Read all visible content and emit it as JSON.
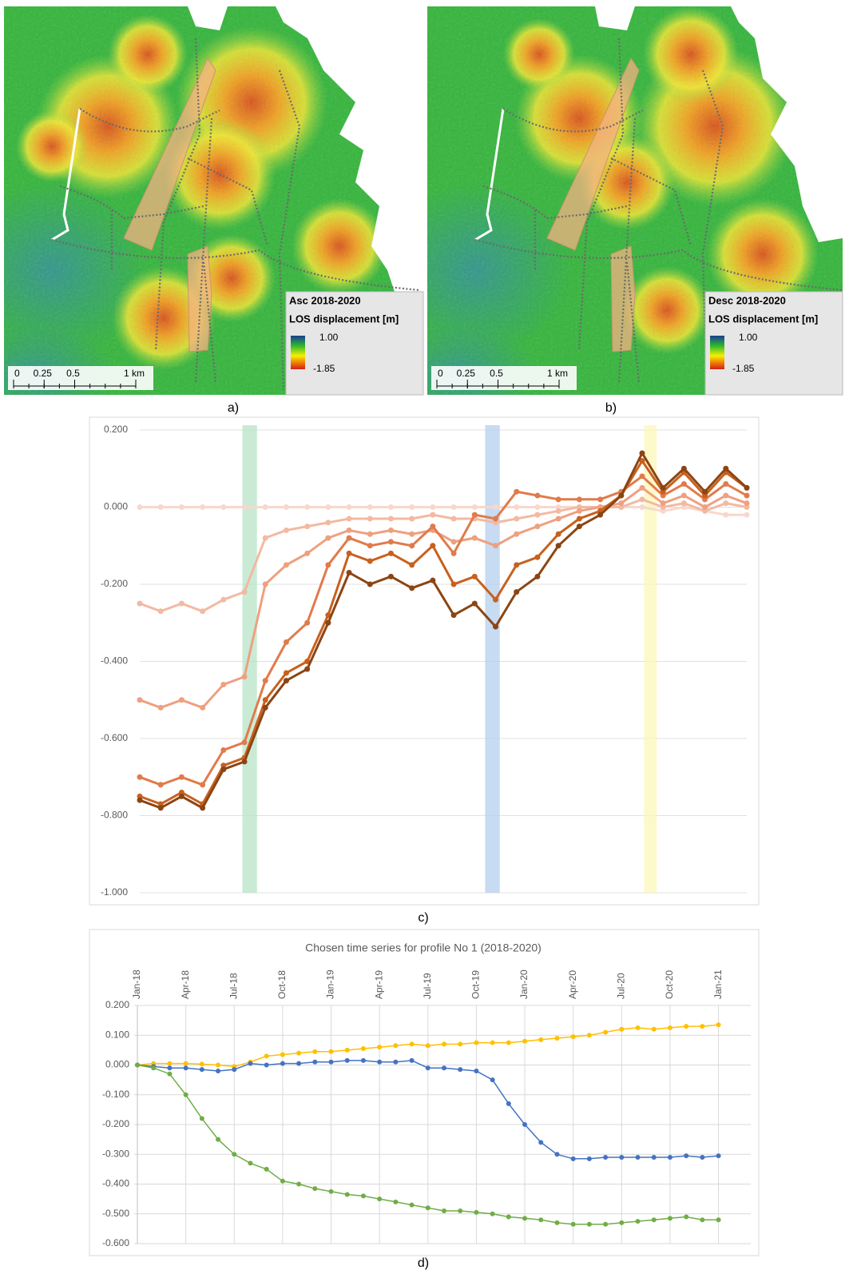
{
  "maps": [
    {
      "caption": "a)",
      "legend_title": "Asc 2018-2020",
      "legend_label": "LOS displacement [m]",
      "legend_max": "1.00",
      "legend_min": "-1.85",
      "scale_ticks": [
        0,
        0.25,
        0.5,
        {
          "value": 1,
          "label": "1 km"
        }
      ]
    },
    {
      "caption": "b)",
      "legend_title": "Desc 2018-2020",
      "legend_label": "LOS displacement [m]",
      "legend_max": "1.00",
      "legend_min": "-1.85",
      "scale_ticks": [
        0,
        0.25,
        0.5,
        {
          "value": 1,
          "label": "1 km"
        }
      ]
    }
  ],
  "chart_data": [
    {
      "type": "line",
      "caption": "c)",
      "ylim": [
        -1,
        0.2
      ],
      "yticks": [
        {
          "value": 0.2,
          "label": "0.200"
        },
        {
          "value": 0,
          "label": "0.000"
        },
        {
          "value": -0.2,
          "label": "-0.200"
        },
        {
          "value": -0.4,
          "label": "-0.400"
        },
        {
          "value": -0.6,
          "label": "-0.600"
        },
        {
          "value": -0.8,
          "label": "-0.800"
        },
        {
          "value": -1,
          "label": "-1.000"
        }
      ],
      "grid": true,
      "highlights": [
        {
          "from": 4.9,
          "to": 5.6,
          "color": "#b7e4c7"
        },
        {
          "from": 16.5,
          "to": 17.2,
          "color": "#b4cfee"
        },
        {
          "from": 24.1,
          "to": 24.7,
          "color": "#fbf7b8"
        }
      ],
      "series": [
        {
          "color": "#f8d8cc",
          "values": [
            0,
            0,
            0,
            0,
            0,
            0,
            0,
            0,
            0,
            0,
            0,
            0,
            0,
            0,
            0,
            0,
            0,
            0,
            0,
            0,
            0,
            0,
            0,
            0,
            0,
            -0.01,
            0,
            -0.01,
            -0.02,
            -0.02
          ]
        },
        {
          "color": "#f3b9a2",
          "values": [
            -0.25,
            -0.27,
            -0.25,
            -0.27,
            -0.24,
            -0.22,
            -0.08,
            -0.06,
            -0.05,
            -0.04,
            -0.03,
            -0.03,
            -0.03,
            -0.03,
            -0.02,
            -0.03,
            -0.03,
            -0.04,
            -0.03,
            -0.02,
            -0.01,
            0,
            0,
            0,
            0.02,
            0,
            0.01,
            -0.01,
            0.01,
            0
          ]
        },
        {
          "color": "#eea07f",
          "values": [
            -0.5,
            -0.52,
            -0.5,
            -0.52,
            -0.46,
            -0.44,
            -0.2,
            -0.15,
            -0.12,
            -0.08,
            -0.06,
            -0.07,
            -0.06,
            -0.07,
            -0.06,
            -0.09,
            -0.08,
            -0.1,
            -0.07,
            -0.05,
            -0.03,
            -0.01,
            0,
            0.01,
            0.05,
            0.01,
            0.03,
            0,
            0.03,
            0.01
          ]
        },
        {
          "color": "#e07b4b",
          "values": [
            -0.7,
            -0.72,
            -0.7,
            -0.72,
            -0.63,
            -0.61,
            -0.45,
            -0.35,
            -0.3,
            -0.15,
            -0.08,
            -0.1,
            -0.09,
            -0.1,
            -0.05,
            -0.12,
            -0.02,
            -0.03,
            0.04,
            0.03,
            0.02,
            0.02,
            0.02,
            0.04,
            0.08,
            0.03,
            0.06,
            0.02,
            0.06,
            0.03
          ]
        },
        {
          "color": "#c8601e",
          "values": [
            -0.75,
            -0.77,
            -0.74,
            -0.77,
            -0.67,
            -0.65,
            -0.5,
            -0.43,
            -0.4,
            -0.28,
            -0.12,
            -0.14,
            -0.12,
            -0.15,
            -0.1,
            -0.2,
            -0.18,
            -0.24,
            -0.15,
            -0.13,
            -0.07,
            -0.03,
            -0.01,
            0.03,
            0.12,
            0.04,
            0.09,
            0.03,
            0.09,
            0.05
          ]
        },
        {
          "color": "#8b4513",
          "values": [
            -0.76,
            -0.78,
            -0.75,
            -0.78,
            -0.68,
            -0.66,
            -0.52,
            -0.45,
            -0.42,
            -0.3,
            -0.17,
            -0.2,
            -0.18,
            -0.21,
            -0.19,
            -0.28,
            -0.25,
            -0.31,
            -0.22,
            -0.18,
            -0.1,
            -0.05,
            -0.02,
            0.03,
            0.14,
            0.05,
            0.1,
            0.04,
            0.1,
            0.05
          ]
        }
      ]
    },
    {
      "type": "line",
      "caption": "d)",
      "title": "Chosen time series for profile No 1 (2018-2020)",
      "x": [
        "2018-01",
        "2018-02",
        "2018-03",
        "2018-04",
        "2018-05",
        "2018-06",
        "2018-07",
        "2018-08",
        "2018-09",
        "2018-10",
        "2018-11",
        "2018-12",
        "2019-01",
        "2019-02",
        "2019-03",
        "2019-04",
        "2019-05",
        "2019-06",
        "2019-07",
        "2019-08",
        "2019-09",
        "2019-10",
        "2019-11",
        "2019-12",
        "2020-01",
        "2020-02",
        "2020-03",
        "2020-04",
        "2020-05",
        "2020-06",
        "2020-07",
        "2020-08",
        "2020-09",
        "2020-10",
        "2020-11",
        "2020-12",
        "2021-01"
      ],
      "xlim": [
        "2018-01",
        "2021-03"
      ],
      "xticks": [
        {
          "value": "2018-01",
          "label": "Jan-18"
        },
        {
          "value": "2018-04",
          "label": "Apr-18"
        },
        {
          "value": "2018-07",
          "label": "Jul-18"
        },
        {
          "value": "2018-10",
          "label": "Oct-18"
        },
        {
          "value": "2019-01",
          "label": "Jan-19"
        },
        {
          "value": "2019-04",
          "label": "Apr-19"
        },
        {
          "value": "2019-07",
          "label": "Jul-19"
        },
        {
          "value": "2019-10",
          "label": "Oct-19"
        },
        {
          "value": "2020-01",
          "label": "Jan-20"
        },
        {
          "value": "2020-04",
          "label": "Apr-20"
        },
        {
          "value": "2020-07",
          "label": "Jul-20"
        },
        {
          "value": "2020-10",
          "label": "Oct-20"
        },
        {
          "value": "2021-01",
          "label": "Jan-21"
        }
      ],
      "ylim": [
        -0.6,
        0.2
      ],
      "yticks": [
        {
          "value": 0.2,
          "label": "0.200"
        },
        {
          "value": 0.1,
          "label": "0.100"
        },
        {
          "value": 0,
          "label": "0.000"
        },
        {
          "value": -0.1,
          "label": "-0.100"
        },
        {
          "value": -0.2,
          "label": "-0.200"
        },
        {
          "value": -0.3,
          "label": "-0.300"
        },
        {
          "value": -0.4,
          "label": "-0.400"
        },
        {
          "value": -0.5,
          "label": "-0.500"
        },
        {
          "value": -0.6,
          "label": "-0.600"
        }
      ],
      "grid": true,
      "series": [
        {
          "color": "#ffc000",
          "values": [
            0,
            0.005,
            0.005,
            0.005,
            0.003,
            0,
            -0.005,
            0.01,
            0.03,
            0.035,
            0.04,
            0.045,
            0.045,
            0.05,
            0.055,
            0.06,
            0.065,
            0.07,
            0.065,
            0.07,
            0.07,
            0.075,
            0.075,
            0.075,
            0.08,
            0.085,
            0.09,
            0.095,
            0.1,
            0.11,
            0.12,
            0.125,
            0.12,
            0.125,
            0.13,
            0.13,
            0.135
          ]
        },
        {
          "color": "#4472c4",
          "values": [
            0,
            -0.005,
            -0.01,
            -0.01,
            -0.015,
            -0.02,
            -0.015,
            0.005,
            0,
            0.005,
            0.005,
            0.01,
            0.01,
            0.015,
            0.015,
            0.01,
            0.01,
            0.015,
            -0.01,
            -0.01,
            -0.015,
            -0.02,
            -0.05,
            -0.13,
            -0.2,
            -0.26,
            -0.3,
            -0.315,
            -0.315,
            -0.31,
            -0.31,
            -0.31,
            -0.31,
            -0.31,
            -0.305,
            -0.31,
            -0.305
          ]
        },
        {
          "color": "#70ad47",
          "values": [
            0,
            -0.01,
            -0.03,
            -0.1,
            -0.18,
            -0.25,
            -0.3,
            -0.33,
            -0.35,
            -0.39,
            -0.4,
            -0.415,
            -0.425,
            -0.435,
            -0.44,
            -0.45,
            -0.46,
            -0.47,
            -0.48,
            -0.49,
            -0.49,
            -0.495,
            -0.5,
            -0.51,
            -0.515,
            -0.52,
            -0.53,
            -0.535,
            -0.535,
            -0.535,
            -0.53,
            -0.525,
            -0.52,
            -0.515,
            -0.51,
            -0.52,
            -0.52
          ]
        }
      ]
    }
  ]
}
